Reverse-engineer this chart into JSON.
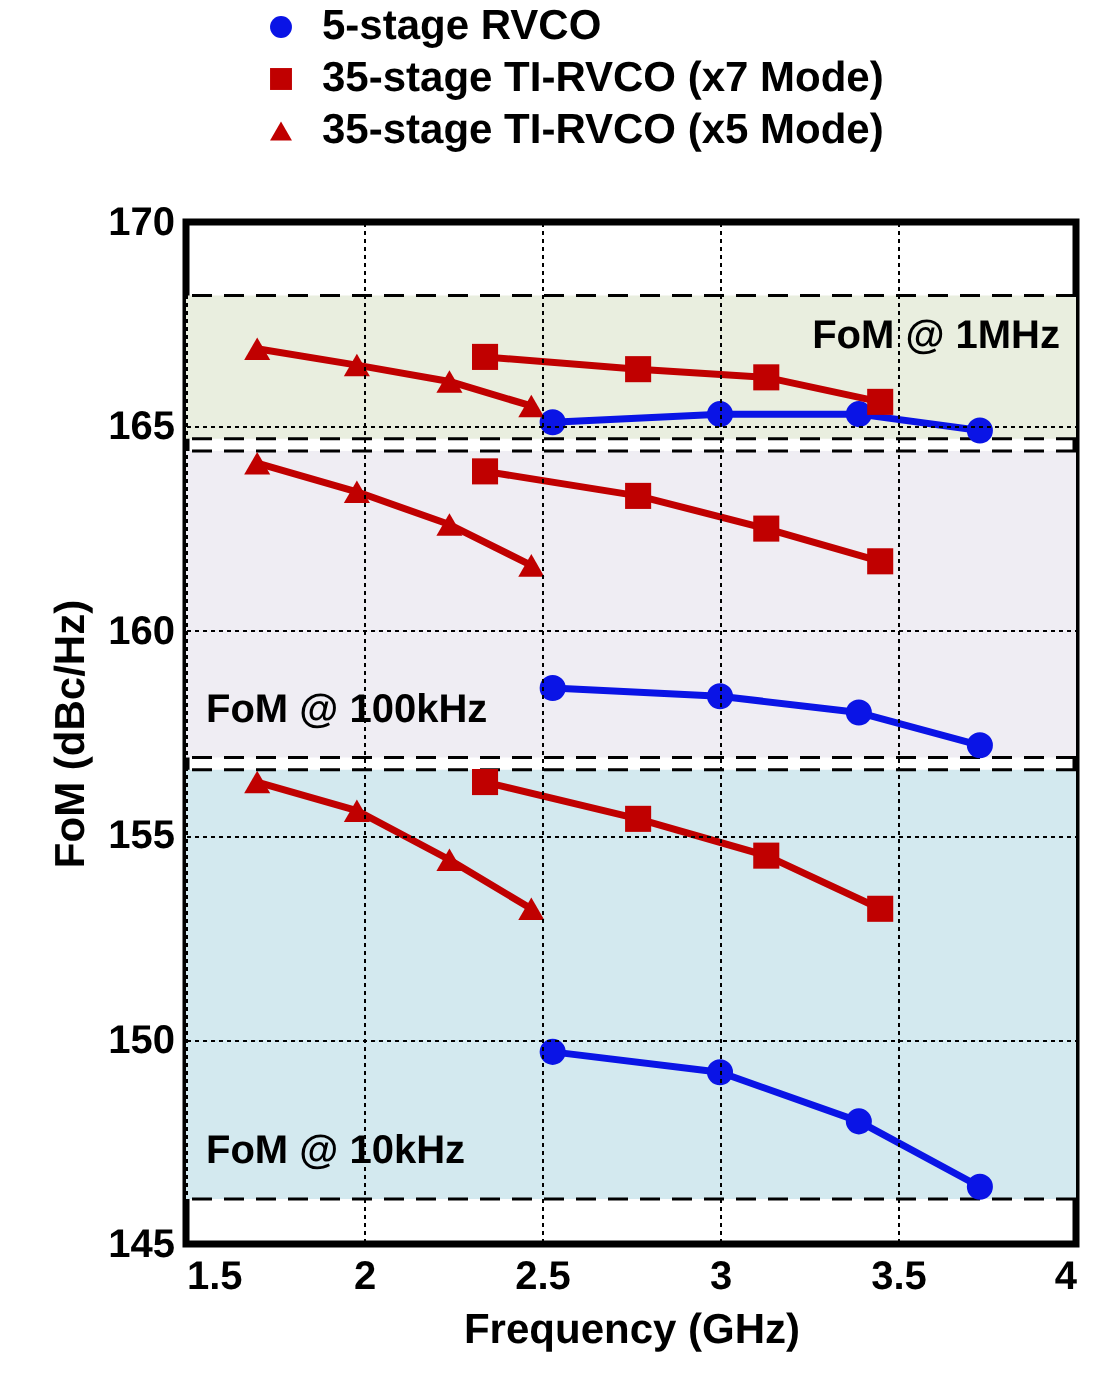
{
  "chart_data": {
    "type": "line",
    "xlabel": "Frequency (GHz)",
    "ylabel": "FoM (dBc/Hz)",
    "xlim": [
      1.5,
      4
    ],
    "xticks": [
      1.5,
      2,
      2.5,
      3,
      3.5,
      4
    ],
    "ylim": [
      145,
      170
    ],
    "yticks": [
      145,
      150,
      155,
      160,
      165,
      170
    ],
    "grid": true,
    "legend": "top",
    "line_style": "solid",
    "series": [
      {
        "name": "5-stage RVCO",
        "color": "#0a14e6",
        "marker": "circle",
        "x": [
          2.53,
          3.0,
          3.39,
          3.73
        ],
        "values": [
          165.1,
          165.3,
          165.3,
          164.9
        ]
      },
      {
        "color": "#0a14e6",
        "marker": "circle",
        "x": [
          2.53,
          3.0,
          3.39,
          3.73
        ],
        "values": [
          158.6,
          158.4,
          158.0,
          157.2
        ]
      },
      {
        "color": "#0a14e6",
        "marker": "circle",
        "x": [
          2.53,
          3.0,
          3.39,
          3.73
        ],
        "values": [
          149.7,
          149.2,
          148.0,
          146.4
        ]
      },
      {
        "name": "35-stage TI-RVCO (x7 Mode)",
        "color": "#c00000",
        "marker": "square",
        "x": [
          2.34,
          2.77,
          3.13,
          3.45
        ],
        "values": [
          166.7,
          166.4,
          166.2,
          165.6
        ]
      },
      {
        "color": "#c00000",
        "marker": "square",
        "x": [
          2.34,
          2.77,
          3.13,
          3.45
        ],
        "values": [
          163.9,
          163.3,
          162.5,
          161.7
        ]
      },
      {
        "color": "#c00000",
        "marker": "square",
        "x": [
          2.34,
          2.77,
          3.13,
          3.45
        ],
        "values": [
          156.3,
          155.4,
          154.5,
          153.2
        ]
      },
      {
        "name": "35-stage TI-RVCO (x5 Mode)",
        "color": "#c00000",
        "marker": "triangle",
        "x": [
          1.7,
          1.98,
          2.24,
          2.47
        ],
        "values": [
          166.9,
          166.5,
          166.1,
          165.5
        ]
      },
      {
        "color": "#c00000",
        "marker": "triangle",
        "x": [
          1.7,
          1.98,
          2.24,
          2.47
        ],
        "values": [
          164.1,
          163.4,
          162.6,
          161.6
        ]
      },
      {
        "color": "#c00000",
        "marker": "triangle",
        "x": [
          1.7,
          1.98,
          2.24,
          2.47
        ],
        "values": [
          156.3,
          155.6,
          154.4,
          153.2
        ]
      }
    ],
    "bands": [
      {
        "axis": "y",
        "from": 164.7,
        "to": 168.2,
        "color": "#e9eedf",
        "label": "FoM @ 1MHz"
      },
      {
        "axis": "y",
        "from": 156.9,
        "to": 164.4,
        "color": "#efedf3",
        "label": "FoM @ 100kHz"
      },
      {
        "axis": "y",
        "from": 146.1,
        "to": 156.6,
        "color": "#d3e9ef",
        "label": "FoM @ 10kHz"
      }
    ],
    "ref_lines": [
      {
        "axis": "y",
        "value": 168.2,
        "line_style": "dashed"
      },
      {
        "axis": "y",
        "value": 164.7,
        "line_style": "dashed"
      },
      {
        "axis": "y",
        "value": 164.4,
        "line_style": "dashed"
      },
      {
        "axis": "y",
        "value": 156.9,
        "line_style": "dashed"
      },
      {
        "axis": "y",
        "value": 156.6,
        "line_style": "dashed"
      },
      {
        "axis": "y",
        "value": 146.1,
        "line_style": "dashed"
      }
    ]
  }
}
